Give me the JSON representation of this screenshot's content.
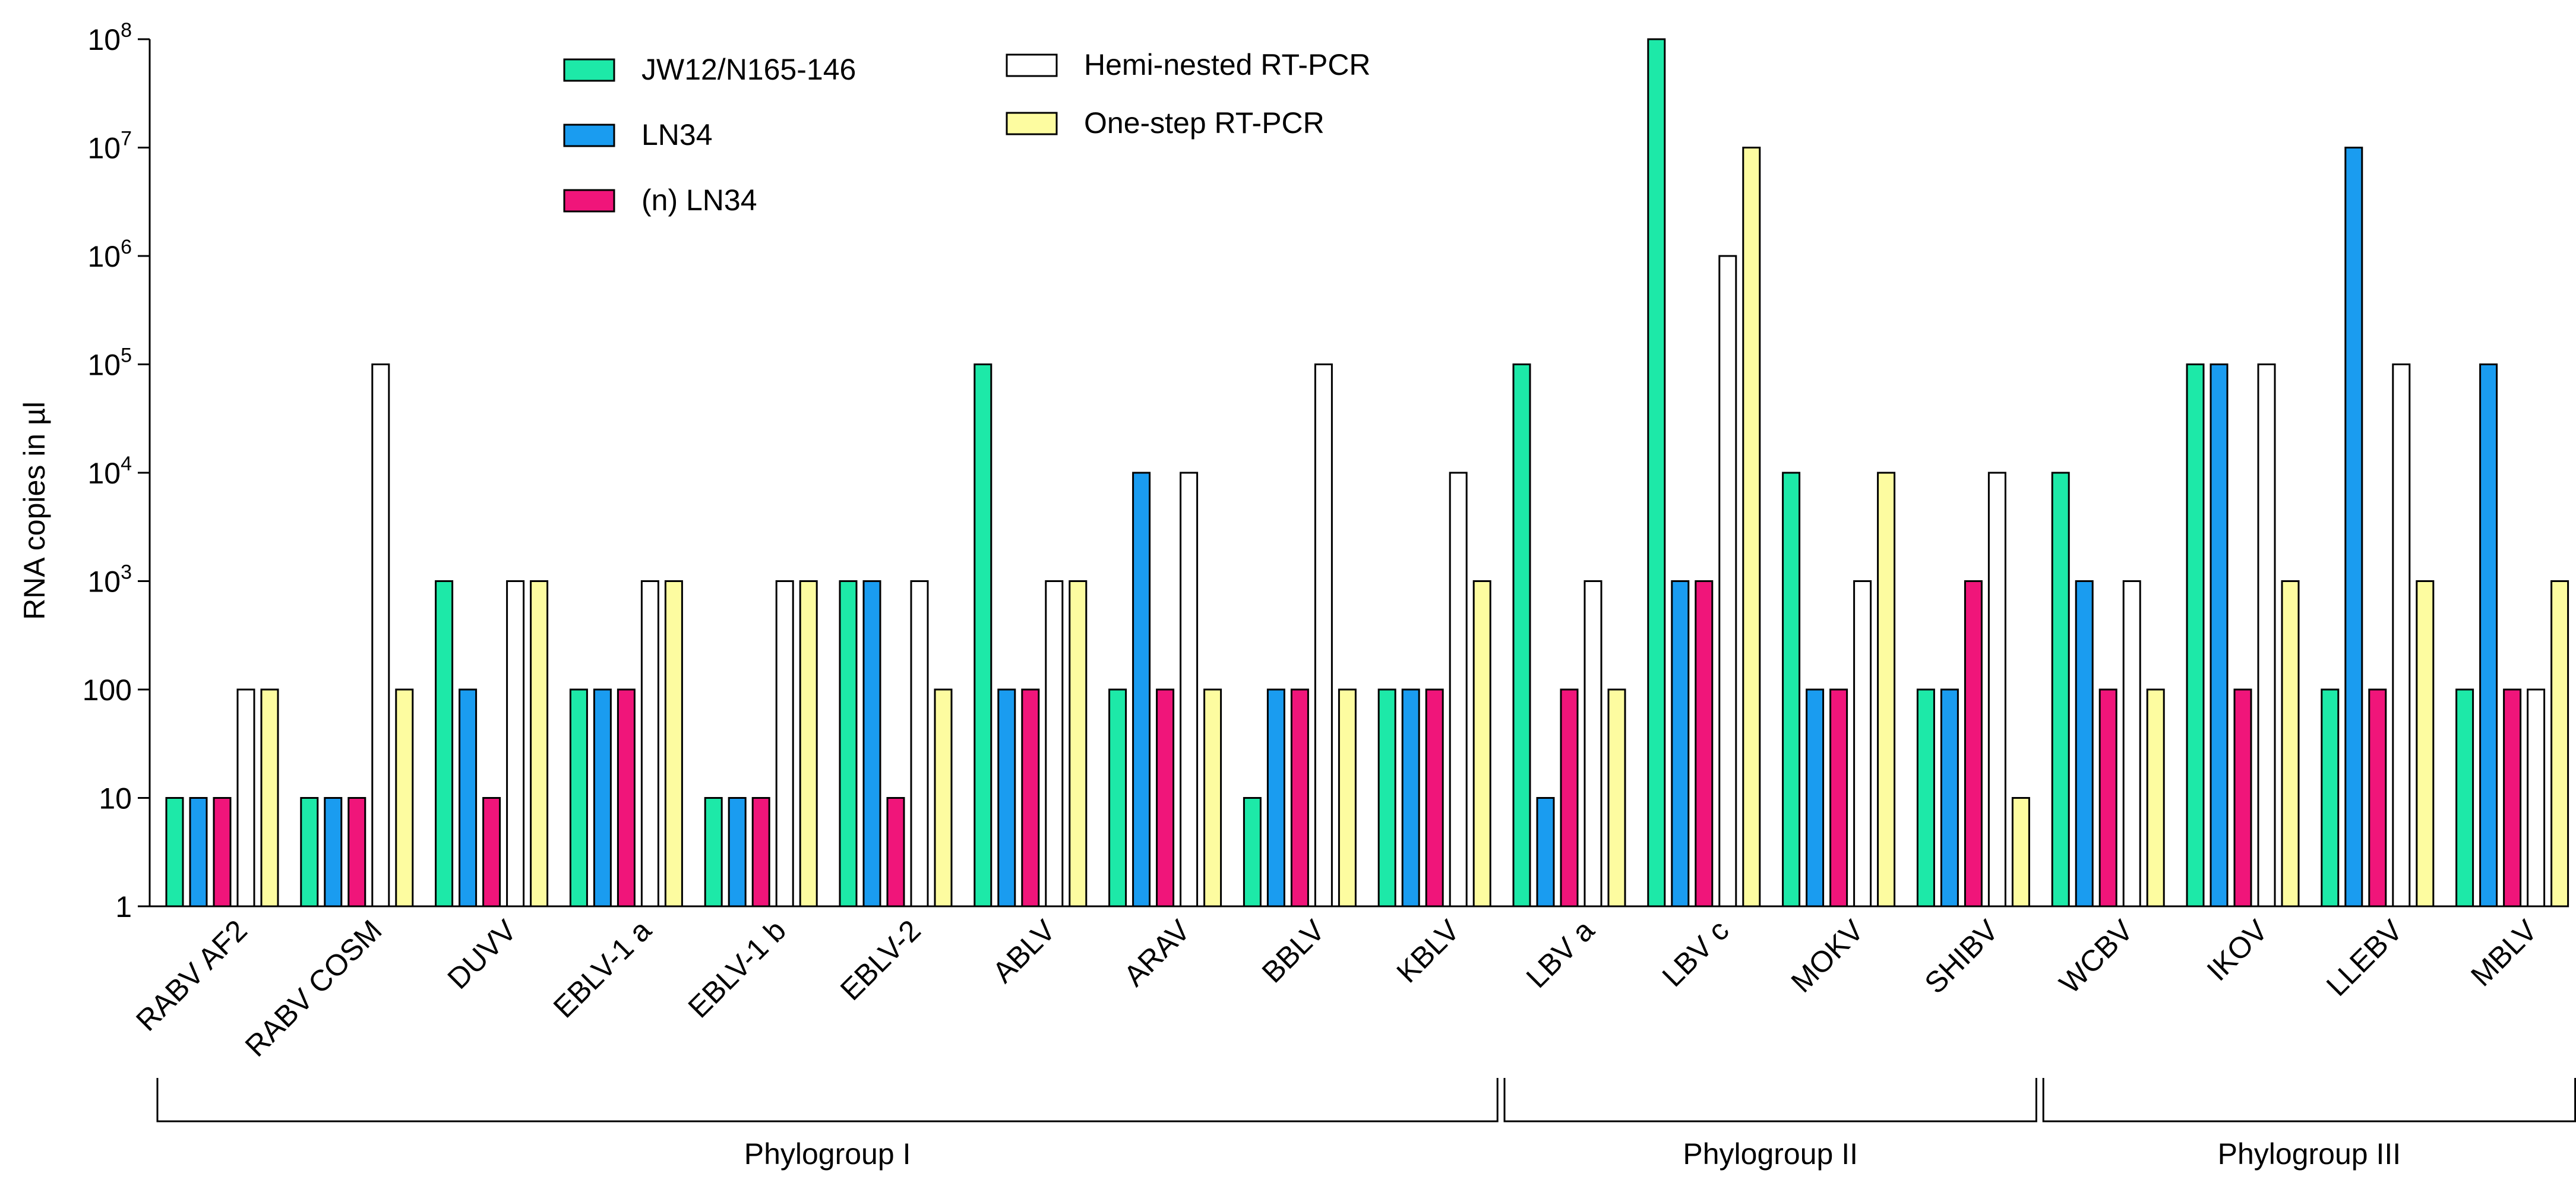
{
  "chart_data": {
    "type": "bar",
    "scale": "log",
    "ylabel": "RNA copies in µl",
    "ylim": [
      1,
      100000000
    ],
    "y_ticks": [
      {
        "label": "1",
        "value": 1
      },
      {
        "label": "10",
        "value": 10
      },
      {
        "label": "100",
        "value": 100
      },
      {
        "label": "10",
        "sup": "3",
        "value": 1000
      },
      {
        "label": "10",
        "sup": "4",
        "value": 10000
      },
      {
        "label": "10",
        "sup": "5",
        "value": 100000
      },
      {
        "label": "10",
        "sup": "6",
        "value": 1000000
      },
      {
        "label": "10",
        "sup": "7",
        "value": 10000000
      },
      {
        "label": "10",
        "sup": "8",
        "value": 100000000
      }
    ],
    "categories": [
      "RABV AF2",
      "RABV COSM",
      "DUVV",
      "EBLV-1 a",
      "EBLV-1 b",
      "EBLV-2",
      "ABLV",
      "ARAV",
      "BBLV",
      "KBLV",
      "LBV a",
      "LBV c",
      "MOKV",
      "SHIBV",
      "WCBV",
      "IKOV",
      "LLEBV",
      "MBLV"
    ],
    "series": [
      {
        "name": "JW12/N165-146",
        "color": "#1de9a8",
        "values": [
          10,
          10,
          1000,
          100,
          10,
          1000,
          100000,
          100,
          10,
          100,
          100000,
          100000000,
          10000,
          100,
          10000,
          100000,
          100,
          100
        ]
      },
      {
        "name": "LN34",
        "color": "#1a9cf0",
        "values": [
          10,
          10,
          100,
          100,
          10,
          1000,
          100,
          10000,
          100,
          100,
          10,
          1000,
          100,
          100,
          1000,
          100000,
          10000000,
          100000
        ]
      },
      {
        "name": "(n) LN34",
        "color": "#f0157a",
        "values": [
          10,
          10,
          10,
          100,
          10,
          10,
          100,
          100,
          100,
          100,
          100,
          1000,
          100,
          1000,
          100,
          100,
          100,
          100
        ]
      },
      {
        "name": "Hemi-nested RT-PCR",
        "color": "#ffffff",
        "values": [
          100,
          100000,
          1000,
          1000,
          1000,
          1000,
          1000,
          10000,
          100000,
          10000,
          1000,
          1000000,
          1000,
          10000,
          1000,
          100000,
          100000,
          100
        ]
      },
      {
        "name": "One-step RT-PCR",
        "color": "#fdfca0",
        "values": [
          100,
          100,
          1000,
          1000,
          1000,
          100,
          1000,
          100,
          100,
          1000,
          100,
          10000000,
          10000,
          10,
          100,
          1000,
          1000,
          1000
        ]
      }
    ],
    "groups": [
      {
        "name": "Phylogroup I",
        "from": 0,
        "to": 9
      },
      {
        "name": "Phylogroup II",
        "from": 10,
        "to": 13
      },
      {
        "name": "Phylogroup III",
        "from": 14,
        "to": 17
      }
    ],
    "legend": [
      {
        "label": "JW12/N165-146",
        "color": "#1de9a8"
      },
      {
        "label": "LN34",
        "color": "#1a9cf0"
      },
      {
        "label": "(n) LN34",
        "color": "#f0157a"
      },
      {
        "label": "Hemi-nested RT-PCR",
        "color": "#ffffff"
      },
      {
        "label": "One-step RT-PCR",
        "color": "#fdfca0"
      }
    ],
    "legend_position": "top-left",
    "grid": false
  }
}
